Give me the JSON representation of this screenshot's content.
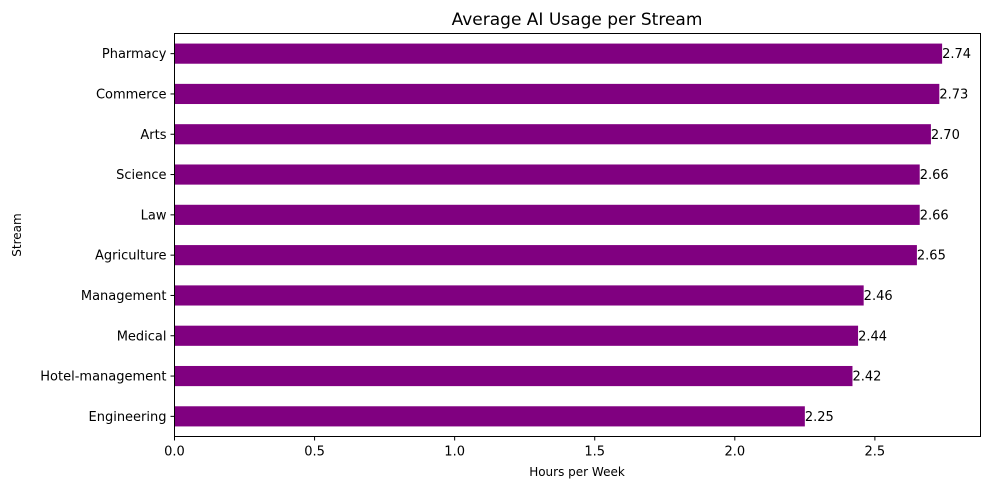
{
  "chart_data": {
    "type": "bar",
    "orientation": "horizontal",
    "title": "Average AI Usage per Stream",
    "xlabel": "Hours per Week",
    "ylabel": "Stream",
    "categories": [
      "Pharmacy",
      "Commerce",
      "Arts",
      "Science",
      "Law",
      "Agriculture",
      "Management",
      "Medical",
      "Hotel-management",
      "Engineering"
    ],
    "values": [
      2.74,
      2.73,
      2.7,
      2.66,
      2.66,
      2.65,
      2.46,
      2.44,
      2.42,
      2.25
    ],
    "data_labels": [
      "2.74",
      "2.73",
      "2.70",
      "2.66",
      "2.66",
      "2.65",
      "2.46",
      "2.44",
      "2.42",
      "2.25"
    ],
    "xticks": [
      0.0,
      0.5,
      1.0,
      1.5,
      2.0,
      2.5
    ],
    "xtick_labels": [
      "0.0",
      "0.5",
      "1.0",
      "1.5",
      "2.0",
      "2.5"
    ],
    "xlim": [
      0,
      2.877
    ],
    "grid": false,
    "legend": "none",
    "bar_color": "#800080"
  }
}
